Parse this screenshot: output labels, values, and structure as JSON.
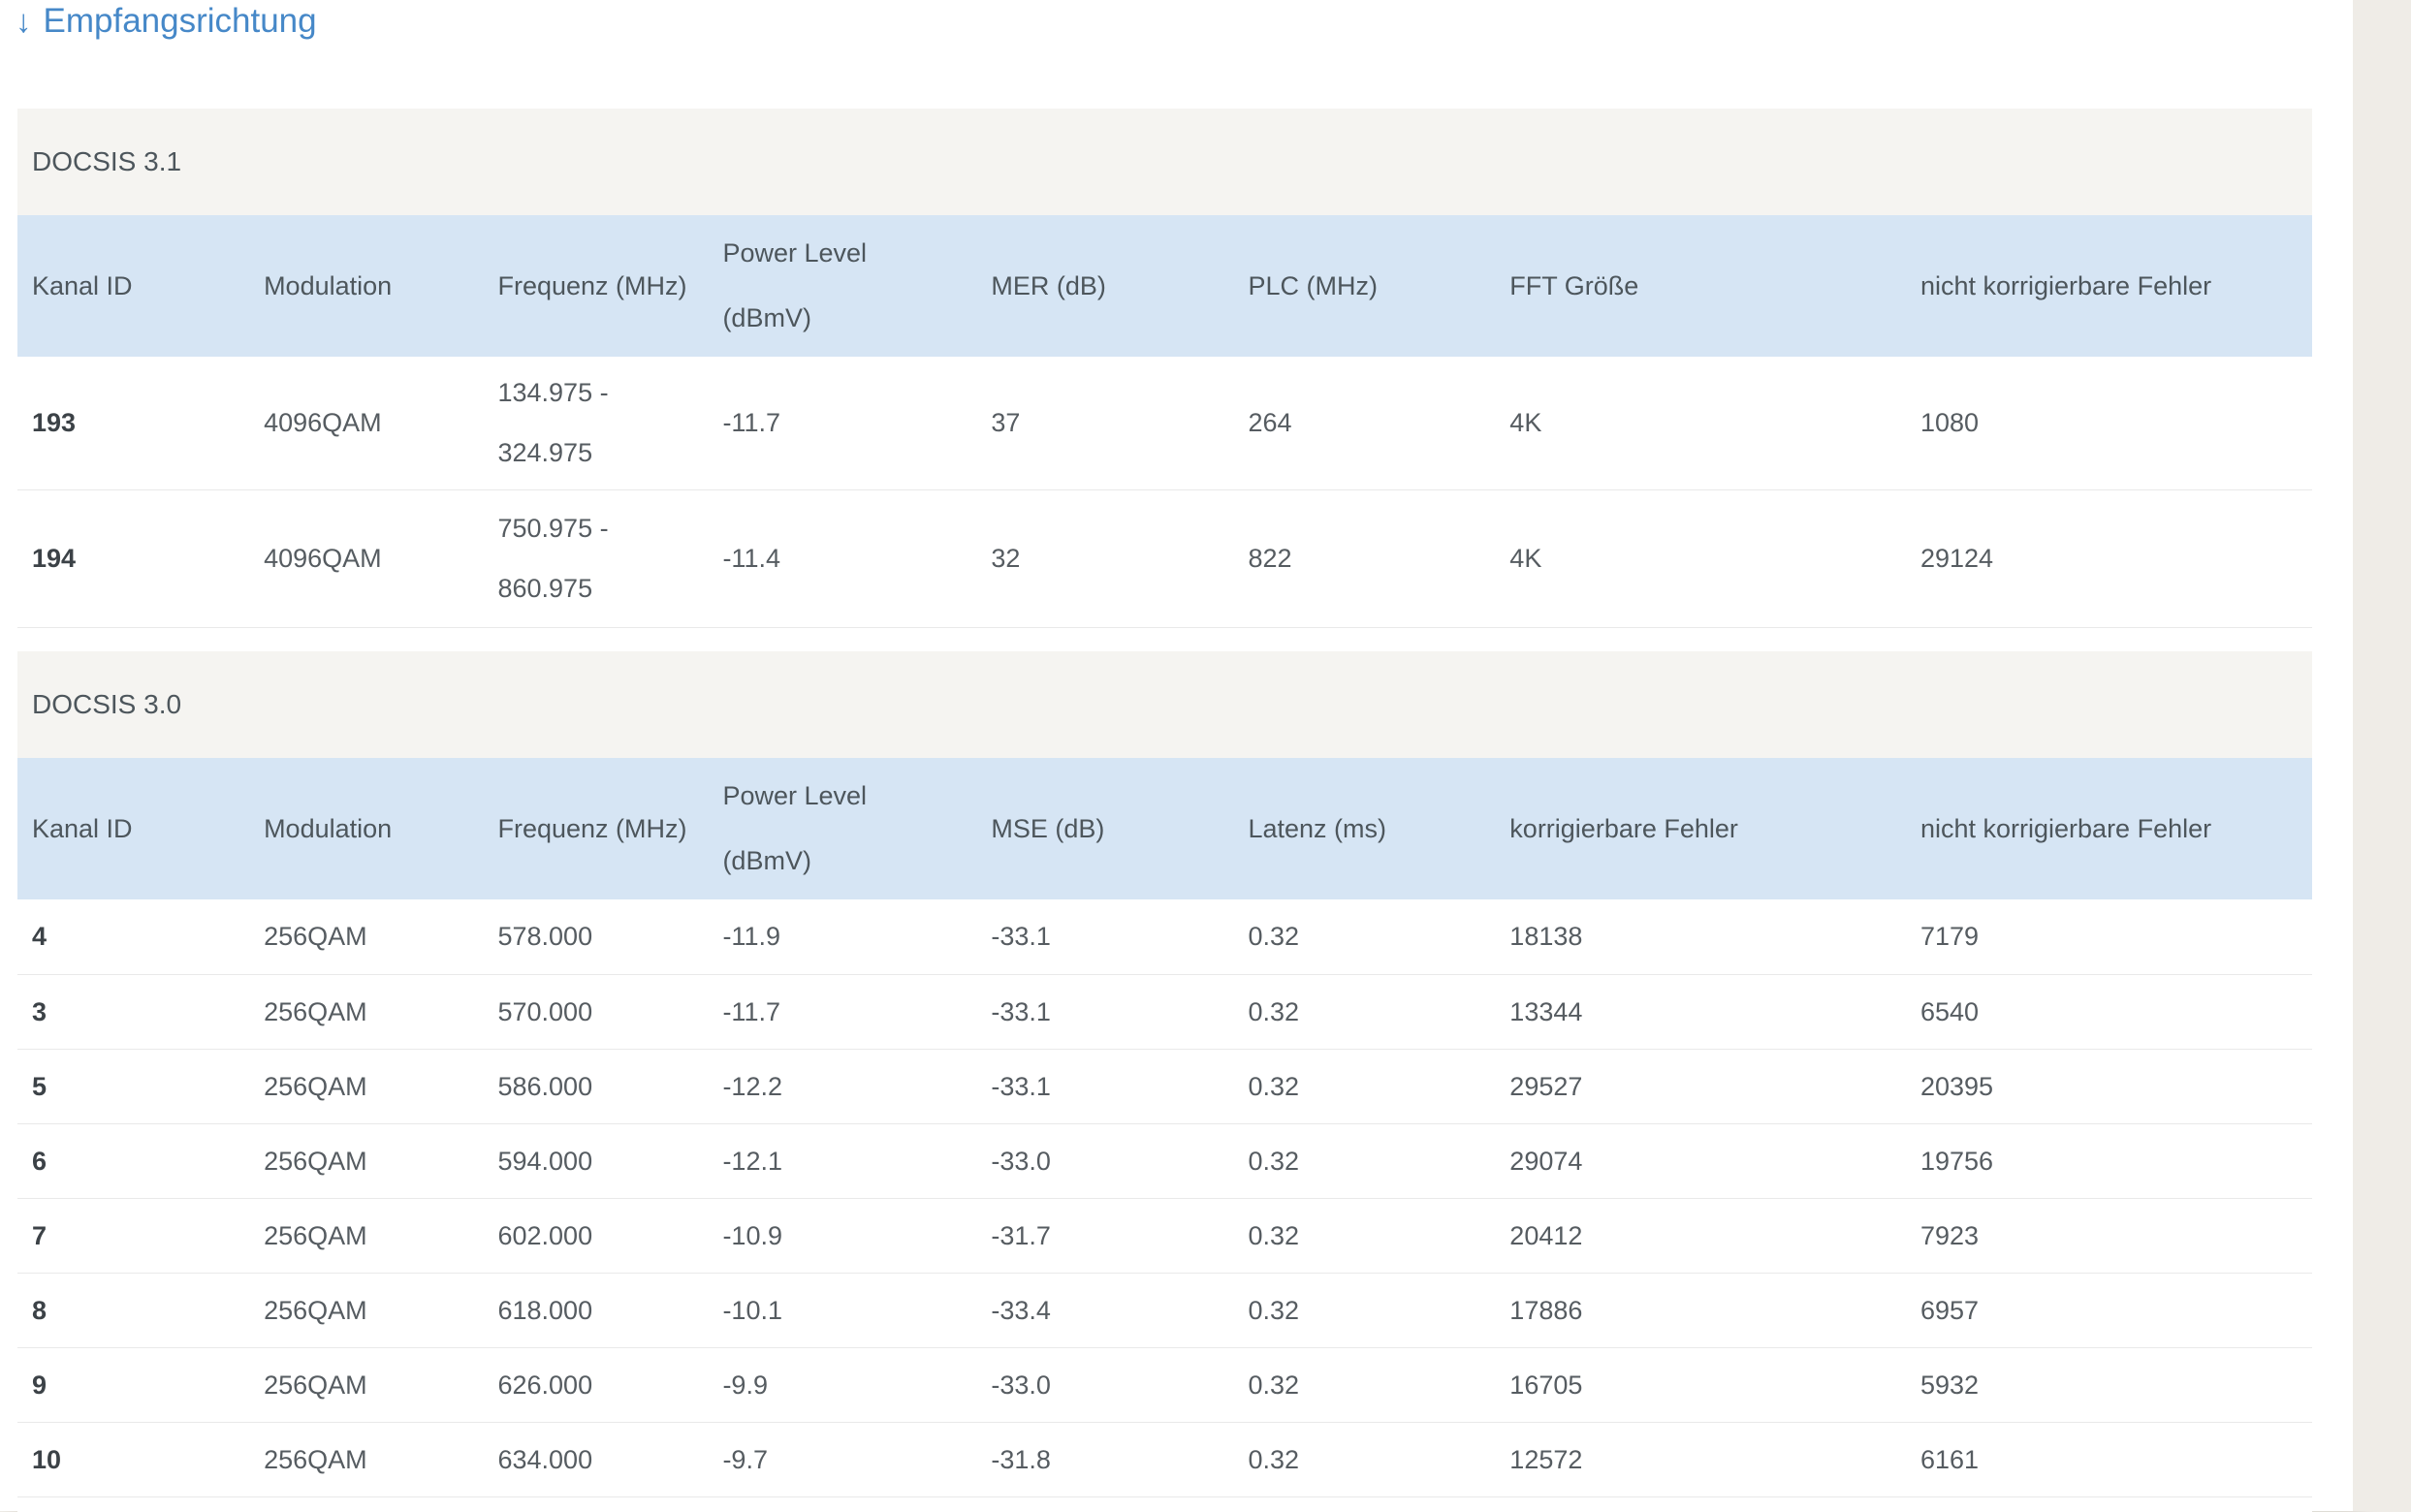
{
  "title": {
    "arrow": "↓",
    "label": "Empfangsrichtung"
  },
  "colors": {
    "accent_blue": "#4688c8",
    "table_header_bg": "#d6e5f4",
    "section_header_bg": "#f5f4f1",
    "page_background": "#efece7",
    "text": "#565c61"
  },
  "tables": [
    {
      "section": "DOCSIS 3.1",
      "columns": [
        "Kanal ID",
        "Modulation",
        "Frequenz (MHz)",
        [
          "Power Level",
          "(dBmV)"
        ],
        "MER (dB)",
        "PLC (MHz)",
        "FFT Größe",
        "nicht korrigierbare Fehler"
      ],
      "rows": [
        [
          "193",
          "4096QAM",
          [
            "134.975 -",
            "324.975"
          ],
          "-11.7",
          "37",
          "264",
          "4K",
          "1080"
        ],
        [
          "194",
          "4096QAM",
          [
            "750.975 -",
            "860.975"
          ],
          "-11.4",
          "32",
          "822",
          "4K",
          "29124"
        ]
      ]
    },
    {
      "section": "DOCSIS 3.0",
      "columns": [
        "Kanal ID",
        "Modulation",
        "Frequenz (MHz)",
        [
          "Power Level",
          "(dBmV)"
        ],
        "MSE (dB)",
        "Latenz (ms)",
        "korrigierbare Fehler",
        "nicht korrigierbare Fehler"
      ],
      "rows": [
        [
          "4",
          "256QAM",
          "578.000",
          "-11.9",
          "-33.1",
          "0.32",
          "18138",
          "7179"
        ],
        [
          "3",
          "256QAM",
          "570.000",
          "-11.7",
          "-33.1",
          "0.32",
          "13344",
          "6540"
        ],
        [
          "5",
          "256QAM",
          "586.000",
          "-12.2",
          "-33.1",
          "0.32",
          "29527",
          "20395"
        ],
        [
          "6",
          "256QAM",
          "594.000",
          "-12.1",
          "-33.0",
          "0.32",
          "29074",
          "19756"
        ],
        [
          "7",
          "256QAM",
          "602.000",
          "-10.9",
          "-31.7",
          "0.32",
          "20412",
          "7923"
        ],
        [
          "8",
          "256QAM",
          "618.000",
          "-10.1",
          "-33.4",
          "0.32",
          "17886",
          "6957"
        ],
        [
          "9",
          "256QAM",
          "626.000",
          "-9.9",
          "-33.0",
          "0.32",
          "16705",
          "5932"
        ],
        [
          "10",
          "256QAM",
          "634.000",
          "-9.7",
          "-31.8",
          "0.32",
          "12572",
          "6161"
        ]
      ]
    }
  ]
}
